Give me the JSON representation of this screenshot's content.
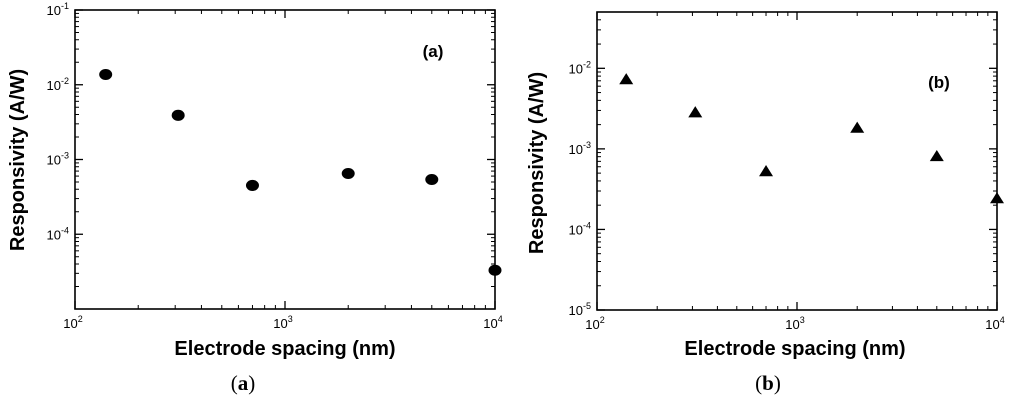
{
  "chart_data": [
    {
      "type": "scatter",
      "panel_label": "(a)",
      "caption": "(a)",
      "xlabel": "Electrode spacing (nm)",
      "ylabel": "Responsivity (A/W)",
      "x_scale": "log",
      "y_scale": "log",
      "xlim": [
        100,
        10000
      ],
      "ylim": [
        1e-05,
        0.1
      ],
      "x_ticks": [
        100,
        1000,
        10000
      ],
      "y_ticks": [
        0.0001,
        0.001,
        0.01,
        0.1
      ],
      "x_tick_labels": [
        {
          "base": "10",
          "exp": "2"
        },
        {
          "base": "10",
          "exp": "3"
        },
        {
          "base": "10",
          "exp": "4"
        }
      ],
      "y_tick_labels": [
        {
          "base": "10",
          "exp": "-4"
        },
        {
          "base": "10",
          "exp": "-3"
        },
        {
          "base": "10",
          "exp": "-2"
        },
        {
          "base": "10",
          "exp": "-1"
        }
      ],
      "marker": "circle",
      "marker_color": "#000000",
      "x": [
        140,
        310,
        700,
        2000,
        5000,
        10000
      ],
      "y": [
        0.0137,
        0.0039,
        0.00045,
        0.00065,
        0.00054,
        3.3e-05
      ],
      "grid": false
    },
    {
      "type": "scatter",
      "panel_label": "(b)",
      "caption": "(b)",
      "xlabel": "Electrode spacing (nm)",
      "ylabel": "Responsivity (A/W)",
      "x_scale": "log",
      "y_scale": "log",
      "xlim": [
        100,
        10000
      ],
      "ylim": [
        1e-05,
        0.05
      ],
      "x_ticks": [
        100,
        1000,
        10000
      ],
      "y_ticks": [
        1e-05,
        0.0001,
        0.001,
        0.01
      ],
      "x_tick_labels": [
        {
          "base": "10",
          "exp": "2"
        },
        {
          "base": "10",
          "exp": "3"
        },
        {
          "base": "10",
          "exp": "4"
        }
      ],
      "y_tick_labels": [
        {
          "base": "10",
          "exp": "-5"
        },
        {
          "base": "10",
          "exp": "-4"
        },
        {
          "base": "10",
          "exp": "-3"
        },
        {
          "base": "10",
          "exp": "-2"
        }
      ],
      "marker": "triangle",
      "marker_color": "#000000",
      "x": [
        140,
        310,
        700,
        2000,
        5000,
        10000
      ],
      "y": [
        0.0072,
        0.0028,
        0.00052,
        0.0018,
        0.0008,
        0.00024
      ],
      "grid": false
    }
  ]
}
